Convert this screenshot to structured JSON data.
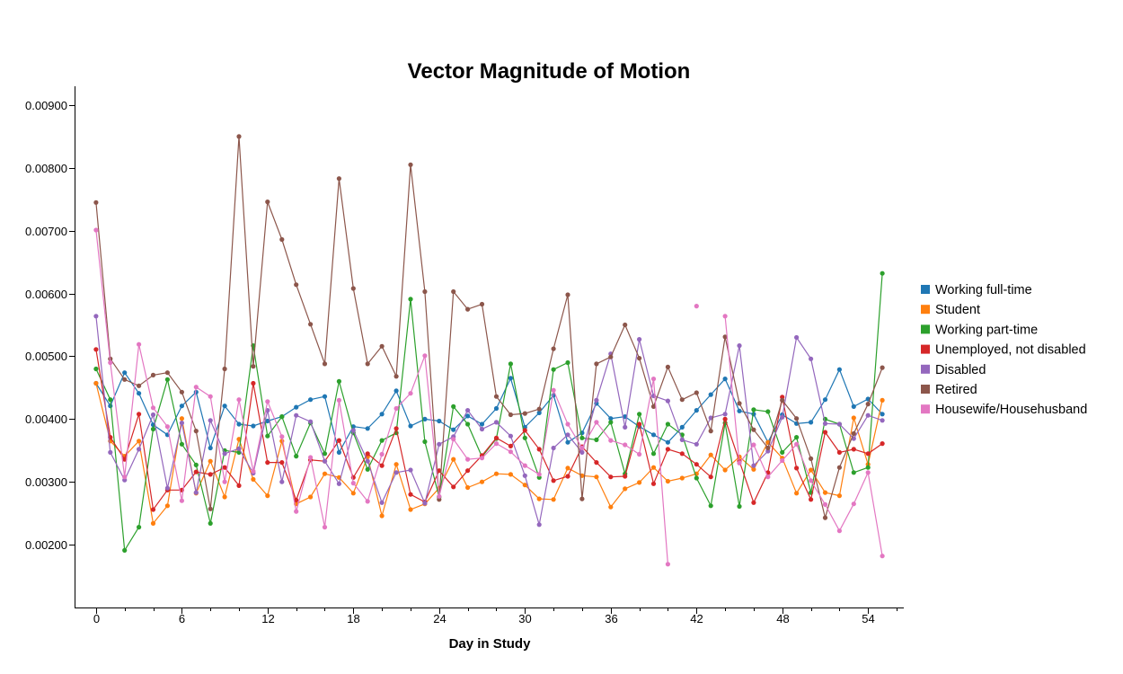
{
  "chart_data": {
    "type": "line",
    "title": "Vector Magnitude of Motion",
    "xlabel": "Day in Study",
    "ylabel": "",
    "xlim": [
      -1.5,
      56.5
    ],
    "ylim": [
      0.001,
      0.0093
    ],
    "x_ticks": [
      0,
      6,
      12,
      18,
      24,
      30,
      36,
      42,
      48,
      54
    ],
    "x_tick_labels": [
      "0",
      "6",
      "12",
      "18",
      "24",
      "30",
      "36",
      "42",
      "48",
      "54"
    ],
    "y_ticks": [
      0.002,
      0.003,
      0.004,
      0.005,
      0.006,
      0.007,
      0.008,
      0.009
    ],
    "y_tick_labels": [
      "0.00200",
      "0.00300",
      "0.00400",
      "0.00500",
      "0.00600",
      "0.00700",
      "0.00800",
      "0.00900"
    ],
    "grid": false,
    "legend_position": "right",
    "series": [
      {
        "name": "Working full-time",
        "color": "#1f77b4",
        "x": [
          0,
          1,
          2,
          3,
          4,
          5,
          6,
          7,
          8,
          9,
          10,
          11,
          12,
          13,
          14,
          15,
          16,
          17,
          18,
          19,
          20,
          21,
          22,
          23,
          24,
          25,
          26,
          27,
          28,
          29,
          30,
          31,
          32,
          33,
          34,
          35,
          36,
          37,
          38,
          39,
          40,
          41,
          42,
          43,
          44,
          45,
          46,
          47,
          48,
          49,
          50,
          51,
          52,
          53,
          54,
          55
        ],
        "y": [
          0.00457,
          0.00421,
          0.00474,
          0.00441,
          0.00391,
          0.00375,
          0.00421,
          0.00443,
          0.00354,
          0.00421,
          0.00392,
          0.00389,
          0.00397,
          0.00404,
          0.00419,
          0.00431,
          0.00436,
          0.00347,
          0.00388,
          0.00385,
          0.00408,
          0.00445,
          0.00389,
          0.004,
          0.00397,
          0.00383,
          0.00405,
          0.00392,
          0.00417,
          0.00465,
          0.00387,
          0.0041,
          0.00438,
          0.00363,
          0.00378,
          0.00425,
          0.00401,
          0.00404,
          0.00388,
          0.00375,
          0.00363,
          0.00387,
          0.00414,
          0.00439,
          0.00464,
          0.00413,
          0.00408,
          0.00363,
          0.00407,
          0.00393,
          0.00395,
          0.00431,
          0.00479,
          0.0042,
          0.00432,
          0.00408
        ]
      },
      {
        "name": "Student",
        "color": "#ff7f0e",
        "x": [
          0,
          1,
          2,
          3,
          4,
          5,
          6,
          7,
          8,
          9,
          10,
          11,
          12,
          13,
          14,
          15,
          16,
          17,
          18,
          19,
          20,
          21,
          22,
          23,
          24,
          25,
          26,
          27,
          28,
          29,
          30,
          31,
          32,
          33,
          34,
          35,
          36,
          37,
          38,
          39,
          40,
          41,
          42,
          43,
          44,
          45,
          46,
          47,
          48,
          49,
          50,
          51,
          52,
          53,
          54,
          55
        ],
        "y": [
          0.00457,
          0.00365,
          0.00341,
          0.00365,
          0.00234,
          0.00262,
          0.00401,
          0.00282,
          0.00333,
          0.00276,
          0.00368,
          0.00304,
          0.00278,
          0.00365,
          0.00265,
          0.00276,
          0.00313,
          0.00307,
          0.00282,
          0.0034,
          0.00246,
          0.00328,
          0.00256,
          0.00265,
          0.0029,
          0.00336,
          0.00291,
          0.003,
          0.00313,
          0.00312,
          0.00295,
          0.00273,
          0.00272,
          0.00322,
          0.0031,
          0.00308,
          0.0026,
          0.00289,
          0.00299,
          0.00323,
          0.00301,
          0.00306,
          0.00313,
          0.00343,
          0.00319,
          0.0034,
          0.0032,
          0.00363,
          0.00338,
          0.00282,
          0.00319,
          0.00283,
          0.00278,
          0.00402,
          0.00328,
          0.0043
        ]
      },
      {
        "name": "Working part-time",
        "color": "#2ca02c",
        "x": [
          0,
          1,
          2,
          3,
          4,
          5,
          6,
          7,
          8,
          9,
          10,
          11,
          12,
          13,
          14,
          15,
          16,
          17,
          18,
          19,
          20,
          21,
          22,
          23,
          24,
          25,
          26,
          27,
          28,
          29,
          30,
          31,
          32,
          33,
          34,
          35,
          36,
          37,
          38,
          39,
          40,
          41,
          42,
          43,
          44,
          45,
          46,
          47,
          48,
          49,
          50,
          51,
          52,
          53,
          54,
          55
        ],
        "y": [
          0.0048,
          0.00431,
          0.00191,
          0.00228,
          0.00384,
          0.00463,
          0.0036,
          0.00327,
          0.00234,
          0.0035,
          0.00347,
          0.00517,
          0.00373,
          0.00404,
          0.00341,
          0.00394,
          0.00345,
          0.0046,
          0.00378,
          0.0032,
          0.00366,
          0.00378,
          0.00591,
          0.00364,
          0.00276,
          0.0042,
          0.00392,
          0.0034,
          0.00369,
          0.00488,
          0.0037,
          0.00307,
          0.00479,
          0.0049,
          0.0037,
          0.00367,
          0.00395,
          0.00313,
          0.00408,
          0.00345,
          0.00392,
          0.00375,
          0.00306,
          0.00262,
          0.00394,
          0.00261,
          0.00415,
          0.00412,
          0.00347,
          0.00371,
          0.00283,
          0.004,
          0.00392,
          0.00315,
          0.00323,
          0.00632
        ]
      },
      {
        "name": "Unemployed, not disabled",
        "color": "#d62728",
        "x": [
          0,
          1,
          2,
          3,
          4,
          5,
          6,
          7,
          8,
          9,
          10,
          11,
          12,
          13,
          14,
          15,
          16,
          17,
          18,
          19,
          20,
          21,
          22,
          23,
          24,
          25,
          26,
          27,
          28,
          29,
          30,
          31,
          32,
          33,
          34,
          35,
          36,
          37,
          38,
          39,
          40,
          41,
          42,
          43,
          44,
          45,
          46,
          47,
          48,
          49,
          50,
          51,
          52,
          53,
          54,
          55
        ],
        "y": [
          0.00511,
          0.00371,
          0.00336,
          0.00408,
          0.00256,
          0.00287,
          0.00287,
          0.00316,
          0.00312,
          0.00323,
          0.00294,
          0.00457,
          0.00331,
          0.00331,
          0.00271,
          0.00335,
          0.00333,
          0.00366,
          0.00307,
          0.00345,
          0.00326,
          0.00385,
          0.0028,
          0.00268,
          0.00318,
          0.00292,
          0.00318,
          0.00342,
          0.0037,
          0.00357,
          0.00382,
          0.00352,
          0.00302,
          0.00309,
          0.00356,
          0.00331,
          0.00308,
          0.00309,
          0.00392,
          0.00297,
          0.00352,
          0.00345,
          0.00328,
          0.00308,
          0.004,
          0.00333,
          0.00267,
          0.00315,
          0.00435,
          0.00322,
          0.00272,
          0.00379,
          0.00347,
          0.00352,
          0.00345,
          0.00361
        ]
      },
      {
        "name": "Disabled",
        "color": "#9467bd",
        "x": [
          0,
          1,
          2,
          3,
          4,
          5,
          6,
          7,
          8,
          9,
          10,
          11,
          12,
          13,
          14,
          15,
          16,
          17,
          18,
          19,
          20,
          21,
          22,
          23,
          24,
          25,
          26,
          27,
          28,
          29,
          30,
          31,
          32,
          33,
          34,
          35,
          36,
          37,
          38,
          39,
          40,
          41,
          42,
          43,
          44,
          45,
          46,
          47,
          48,
          49,
          50,
          51,
          52,
          53,
          54,
          55
        ],
        "y": [
          0.00564,
          0.00347,
          0.00303,
          0.00352,
          0.00407,
          0.0029,
          0.00394,
          0.00283,
          0.00398,
          0.00345,
          0.00353,
          0.00314,
          0.00414,
          0.003,
          0.00406,
          0.00396,
          0.00333,
          0.00297,
          0.00382,
          0.00333,
          0.00267,
          0.00315,
          0.00319,
          0.00266,
          0.0036,
          0.00372,
          0.00414,
          0.00384,
          0.00395,
          0.00373,
          0.0031,
          0.00232,
          0.00354,
          0.00375,
          0.00347,
          0.0043,
          0.00504,
          0.00387,
          0.00527,
          0.00437,
          0.00429,
          0.00367,
          0.0036,
          0.00402,
          0.00408,
          0.00517,
          0.00326,
          0.00349,
          0.00403,
          0.0053,
          0.00496,
          0.00393,
          0.00392,
          0.00369,
          0.00406,
          0.00398
        ]
      },
      {
        "name": "Retired",
        "color": "#8c564b",
        "x": [
          0,
          1,
          2,
          3,
          4,
          5,
          6,
          7,
          8,
          9,
          10,
          11,
          12,
          13,
          14,
          15,
          16,
          17,
          18,
          19,
          20,
          21,
          22,
          23,
          24,
          25,
          26,
          27,
          28,
          29,
          30,
          31,
          32,
          33,
          34,
          35,
          36,
          37,
          38,
          39,
          40,
          41,
          42,
          43,
          44,
          45,
          46,
          47,
          48,
          49,
          50,
          51,
          52,
          53,
          54,
          55
        ],
        "y": [
          0.00745,
          0.00496,
          0.00463,
          0.00453,
          0.0047,
          0.00474,
          0.00443,
          0.00381,
          0.00257,
          0.0048,
          0.0085,
          0.00484,
          0.00746,
          0.00686,
          0.00614,
          0.00551,
          0.00488,
          0.00783,
          0.00608,
          0.00488,
          0.00516,
          0.00468,
          0.00805,
          0.00603,
          0.00272,
          0.00603,
          0.00575,
          0.00583,
          0.00436,
          0.00407,
          0.00409,
          0.00416,
          0.00512,
          0.00598,
          0.00273,
          0.00488,
          0.00499,
          0.0055,
          0.00497,
          0.0042,
          0.00483,
          0.00431,
          0.00442,
          0.00381,
          0.00531,
          0.00425,
          0.00383,
          0.00354,
          0.0043,
          0.00401,
          0.00337,
          0.00243,
          0.00323,
          0.00377,
          0.00424,
          0.00482
        ]
      },
      {
        "name": "Housewife/Househusband",
        "color": "#e377c2",
        "x": [
          0,
          1,
          2,
          3,
          4,
          5,
          6,
          7,
          8,
          9,
          10,
          11,
          12,
          13,
          14,
          15,
          16,
          17,
          18,
          19,
          20,
          21,
          22,
          23,
          24,
          25,
          26,
          27,
          28,
          29,
          30,
          31,
          32,
          33,
          34,
          35,
          36,
          37,
          38,
          39,
          40,
          43,
          44,
          45,
          46,
          47,
          48,
          49,
          50,
          51,
          52,
          53,
          54,
          55
        ],
        "y": [
          0.00701,
          0.0049,
          0.00308,
          0.00519,
          0.00418,
          0.00388,
          0.0027,
          0.00451,
          0.00436,
          0.003,
          0.00431,
          0.00317,
          0.00428,
          0.00372,
          0.00253,
          0.00339,
          0.00228,
          0.0043,
          0.00298,
          0.00269,
          0.00344,
          0.00417,
          0.00441,
          0.00501,
          0.00277,
          0.00368,
          0.00336,
          0.00338,
          0.00361,
          0.00348,
          0.00326,
          0.00312,
          0.00446,
          0.00392,
          0.00354,
          0.00395,
          0.00366,
          0.00359,
          0.00344,
          0.00464,
          0.00169,
          null,
          0.00564,
          0.0033,
          0.00359,
          0.00308,
          0.00334,
          0.0036,
          0.00302,
          0.00264,
          0.00222,
          0.00265,
          0.00315,
          0.00182
        ]
      }
    ],
    "isolated_points": [
      {
        "series": "Housewife/Househusband",
        "x": 42,
        "y": 0.0058
      }
    ]
  }
}
